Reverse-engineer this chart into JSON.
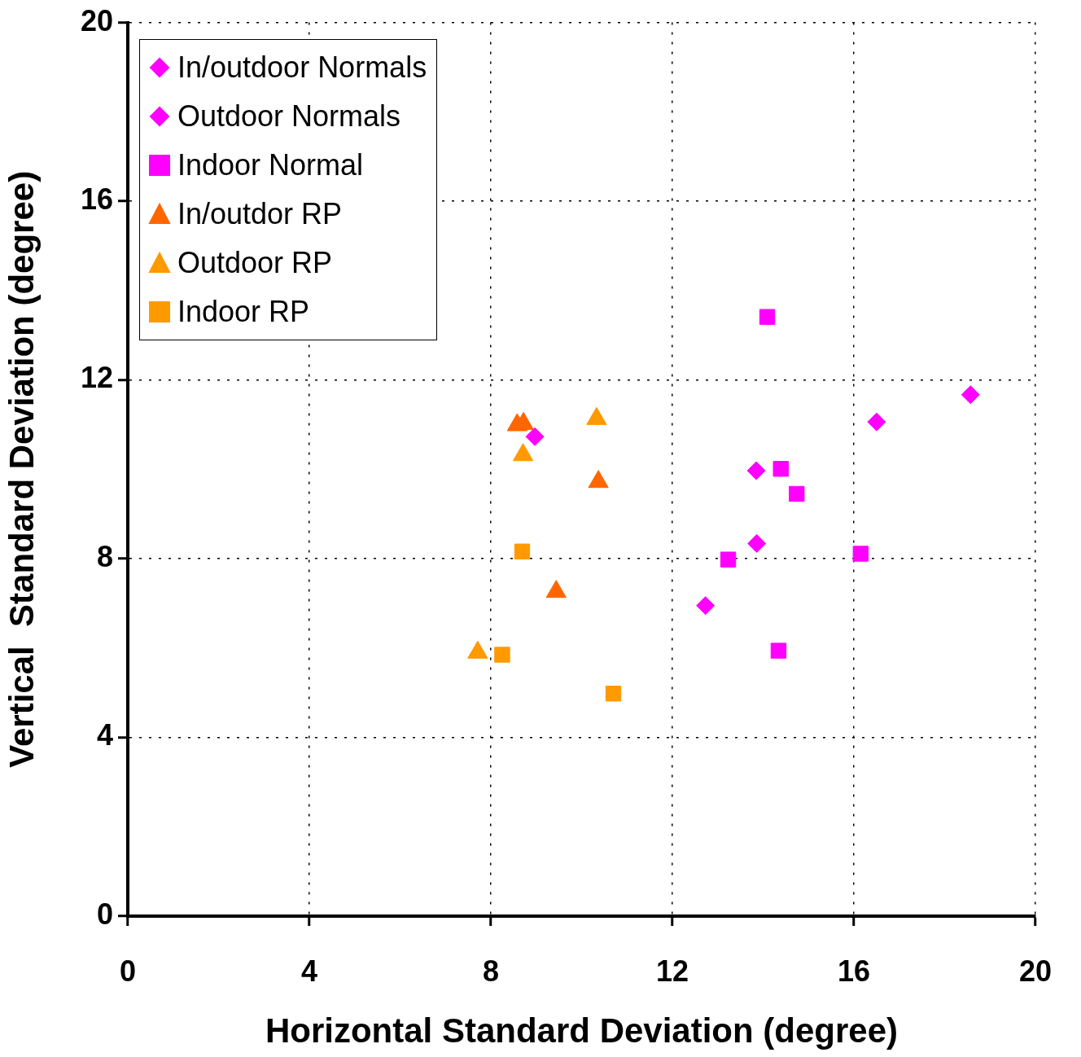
{
  "chart_data": {
    "type": "scatter",
    "xlabel": "Horizontal Standard Deviation (degree)",
    "ylabel": "Vertical  Standard Deviation (degree)",
    "xlim": [
      0,
      20
    ],
    "ylim": [
      0,
      20
    ],
    "xticks": [
      0,
      4,
      8,
      12,
      16,
      20
    ],
    "yticks": [
      0,
      4,
      8,
      12,
      16,
      20
    ],
    "grid": true,
    "legend": "top left",
    "series": [
      {
        "name": "In/outdoor Normals",
        "color": "#ff00ff",
        "marker": "diamond",
        "x": [
          18.57
        ],
        "values": [
          11.67
        ]
      },
      {
        "name": "Outdoor Normals",
        "color": "#ff00ff",
        "marker": "diamond",
        "x": [
          8.97,
          16.5,
          13.85,
          13.86,
          12.73
        ],
        "values": [
          10.73,
          11.06,
          9.97,
          8.34,
          6.95
        ]
      },
      {
        "name": "Indoor Normal",
        "color": "#ff00ff",
        "marker": "square",
        "x": [
          14.09,
          14.39,
          14.74,
          13.23,
          16.15,
          14.34
        ],
        "values": [
          13.41,
          10.01,
          9.45,
          7.98,
          8.11,
          5.94
        ]
      },
      {
        "name": "In/outdor RP",
        "color": "#ff6600",
        "marker": "triangle",
        "x": [
          8.58,
          8.72,
          10.37,
          9.44
        ],
        "values": [
          10.99,
          11.02,
          9.72,
          7.26
        ]
      },
      {
        "name": "Outdoor RP",
        "color": "#ff9900",
        "marker": "triangle",
        "x": [
          10.33,
          8.71,
          7.71
        ],
        "values": [
          11.13,
          10.32,
          5.9
        ]
      },
      {
        "name": "Indoor RP",
        "color": "#ff9900",
        "marker": "square",
        "x": [
          8.69,
          8.25,
          10.7
        ],
        "values": [
          8.16,
          5.85,
          4.98
        ]
      }
    ]
  }
}
